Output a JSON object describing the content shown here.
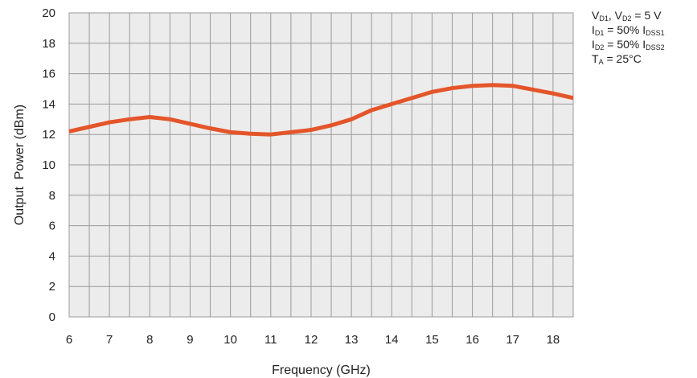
{
  "chart_data": {
    "type": "line",
    "xlabel": "Frequency (GHz)",
    "ylabel": "Output  Power (dBm)",
    "xlim": [
      6,
      18.5
    ],
    "ylim": [
      0,
      20
    ],
    "xticks": [
      6,
      7,
      8,
      9,
      10,
      11,
      12,
      13,
      14,
      15,
      16,
      17,
      18
    ],
    "yticks": [
      0,
      2,
      4,
      6,
      8,
      10,
      12,
      14,
      16,
      18,
      20
    ],
    "x_minor_step": 0.5,
    "grid": true,
    "colors": {
      "line": "#e4552a",
      "plot_bg": "#ececec",
      "grid": "#9a9a9a"
    },
    "series": [
      {
        "x": [
          6,
          6.5,
          7,
          7.5,
          8,
          8.5,
          9,
          9.5,
          10,
          10.5,
          11,
          11.5,
          12,
          12.5,
          13,
          13.5,
          14,
          14.5,
          15,
          15.5,
          16,
          16.5,
          17,
          17.5,
          18,
          18.5
        ],
        "y": [
          12.2,
          12.5,
          12.8,
          13.0,
          13.15,
          13.0,
          12.7,
          12.4,
          12.15,
          12.05,
          12.0,
          12.15,
          12.3,
          12.6,
          13.0,
          13.6,
          14.0,
          14.4,
          14.8,
          15.05,
          15.2,
          15.25,
          15.2,
          14.95,
          14.7,
          14.4
        ]
      }
    ]
  },
  "conditions": {
    "line1": {
      "a": "V",
      "a_sub": "D1",
      "sep": ", ",
      "b": "V",
      "b_sub": "D2",
      "rest": " = 5 V"
    },
    "line2": {
      "a": "I",
      "a_sub": "D1",
      "mid": " = 50% I",
      "b_sub": "DSS1"
    },
    "line3": {
      "a": "I",
      "a_sub": "D2",
      "mid": " = 50% I",
      "b_sub": "DSS2"
    },
    "line4": {
      "a": "T",
      "a_sub": "A",
      "rest": " = 25°C"
    }
  }
}
